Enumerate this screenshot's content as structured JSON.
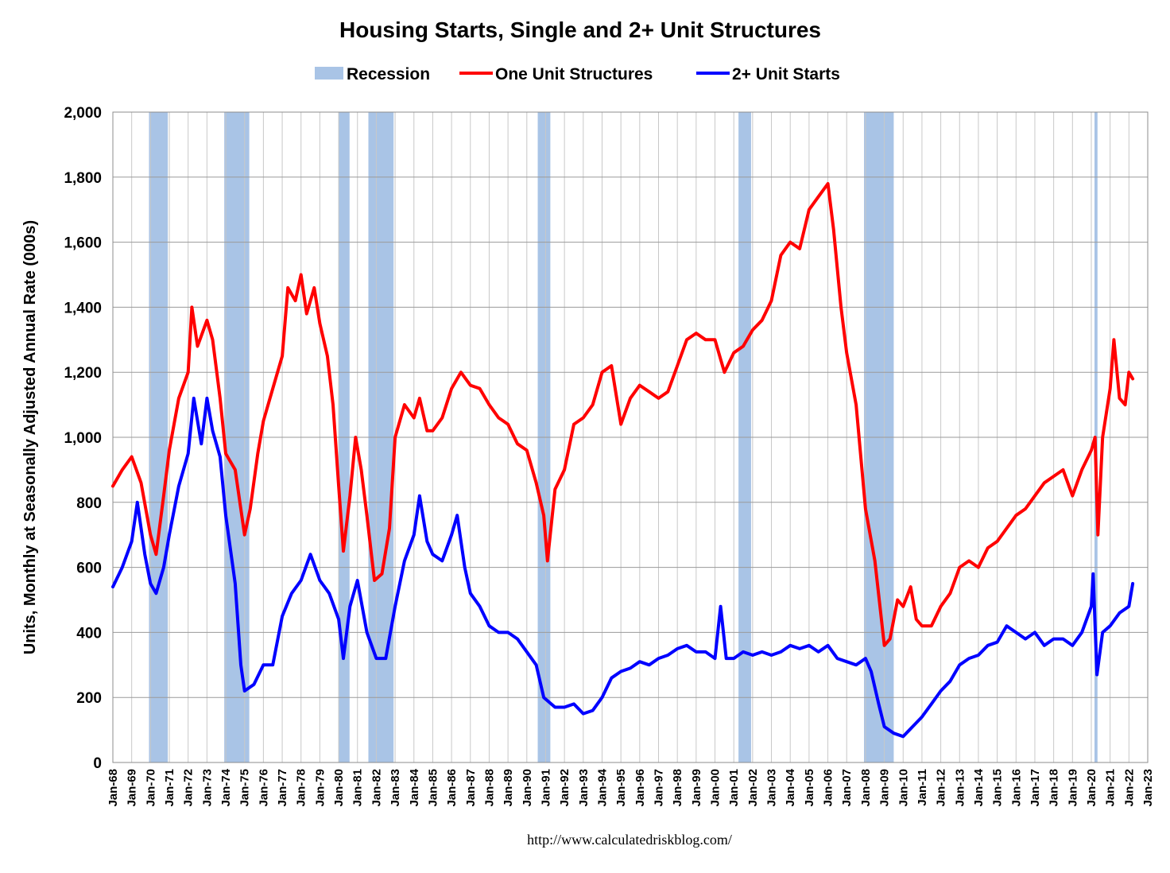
{
  "chart_data": {
    "type": "line",
    "title": "Housing Starts, Single and 2+ Unit Structures",
    "ylabel": "Units, Monthly at Seasonally Adjusted Annual Rate (000s)",
    "xlabel": "",
    "source": "http://www.calculatedriskblog.com/",
    "ylim": [
      0,
      2000
    ],
    "y_ticks": [
      0,
      200,
      400,
      600,
      800,
      1000,
      1200,
      1400,
      1600,
      1800,
      2000
    ],
    "y_tick_labels": [
      "0",
      "200",
      "400",
      "600",
      "800",
      "1,000",
      "1,200",
      "1,400",
      "1,600",
      "1,800",
      "2,000"
    ],
    "x_range": [
      1968,
      2023
    ],
    "x_tick_labels": [
      "Jan-68",
      "Jan-69",
      "Jan-70",
      "Jan-71",
      "Jan-72",
      "Jan-73",
      "Jan-74",
      "Jan-75",
      "Jan-76",
      "Jan-77",
      "Jan-78",
      "Jan-79",
      "Jan-80",
      "Jan-81",
      "Jan-82",
      "Jan-83",
      "Jan-84",
      "Jan-85",
      "Jan-86",
      "Jan-87",
      "Jan-88",
      "Jan-89",
      "Jan-90",
      "Jan-91",
      "Jan-92",
      "Jan-93",
      "Jan-94",
      "Jan-95",
      "Jan-96",
      "Jan-97",
      "Jan-98",
      "Jan-99",
      "Jan-00",
      "Jan-01",
      "Jan-02",
      "Jan-03",
      "Jan-04",
      "Jan-05",
      "Jan-06",
      "Jan-07",
      "Jan-08",
      "Jan-09",
      "Jan-10",
      "Jan-11",
      "Jan-12",
      "Jan-13",
      "Jan-14",
      "Jan-15",
      "Jan-16",
      "Jan-17",
      "Jan-18",
      "Jan-19",
      "Jan-20",
      "Jan-21",
      "Jan-22",
      "Jan-23"
    ],
    "grid": true,
    "legend_position": "top-center",
    "legend": [
      {
        "name": "Recession",
        "kind": "area",
        "color": "#a9c4e6"
      },
      {
        "name": "One Unit Structures",
        "kind": "line",
        "color": "#ff0000"
      },
      {
        "name": "2+ Unit Starts",
        "kind": "line",
        "color": "#0000ff"
      }
    ],
    "recessions": [
      [
        1969.92,
        1970.92
      ],
      [
        1973.92,
        1975.25
      ],
      [
        1980.0,
        1980.58
      ],
      [
        1981.58,
        1982.92
      ],
      [
        1990.58,
        1991.25
      ],
      [
        2001.25,
        2001.92
      ],
      [
        2007.92,
        2009.5
      ],
      [
        2020.17,
        2020.33
      ]
    ],
    "series": [
      {
        "name": "One Unit Structures",
        "color": "#ff0000",
        "points": [
          [
            1968.0,
            850
          ],
          [
            1968.5,
            900
          ],
          [
            1969.0,
            940
          ],
          [
            1969.5,
            860
          ],
          [
            1970.0,
            700
          ],
          [
            1970.3,
            640
          ],
          [
            1970.7,
            820
          ],
          [
            1971.0,
            960
          ],
          [
            1971.5,
            1120
          ],
          [
            1972.0,
            1200
          ],
          [
            1972.2,
            1400
          ],
          [
            1972.5,
            1280
          ],
          [
            1973.0,
            1360
          ],
          [
            1973.3,
            1300
          ],
          [
            1973.7,
            1120
          ],
          [
            1974.0,
            950
          ],
          [
            1974.5,
            900
          ],
          [
            1975.0,
            700
          ],
          [
            1975.3,
            780
          ],
          [
            1975.7,
            950
          ],
          [
            1976.0,
            1050
          ],
          [
            1976.5,
            1150
          ],
          [
            1977.0,
            1250
          ],
          [
            1977.3,
            1460
          ],
          [
            1977.7,
            1420
          ],
          [
            1978.0,
            1500
          ],
          [
            1978.3,
            1380
          ],
          [
            1978.7,
            1460
          ],
          [
            1979.0,
            1350
          ],
          [
            1979.4,
            1250
          ],
          [
            1979.7,
            1100
          ],
          [
            1980.0,
            850
          ],
          [
            1980.25,
            650
          ],
          [
            1980.6,
            820
          ],
          [
            1980.9,
            1000
          ],
          [
            1981.2,
            900
          ],
          [
            1981.5,
            760
          ],
          [
            1981.9,
            560
          ],
          [
            1982.3,
            580
          ],
          [
            1982.7,
            720
          ],
          [
            1983.0,
            1000
          ],
          [
            1983.5,
            1100
          ],
          [
            1984.0,
            1060
          ],
          [
            1984.3,
            1120
          ],
          [
            1984.7,
            1020
          ],
          [
            1985.0,
            1020
          ],
          [
            1985.5,
            1060
          ],
          [
            1986.0,
            1150
          ],
          [
            1986.5,
            1200
          ],
          [
            1987.0,
            1160
          ],
          [
            1987.5,
            1150
          ],
          [
            1988.0,
            1100
          ],
          [
            1988.5,
            1060
          ],
          [
            1989.0,
            1040
          ],
          [
            1989.5,
            980
          ],
          [
            1990.0,
            960
          ],
          [
            1990.5,
            860
          ],
          [
            1990.9,
            760
          ],
          [
            1991.1,
            620
          ],
          [
            1991.5,
            840
          ],
          [
            1992.0,
            900
          ],
          [
            1992.5,
            1040
          ],
          [
            1993.0,
            1060
          ],
          [
            1993.5,
            1100
          ],
          [
            1994.0,
            1200
          ],
          [
            1994.5,
            1220
          ],
          [
            1995.0,
            1040
          ],
          [
            1995.5,
            1120
          ],
          [
            1996.0,
            1160
          ],
          [
            1996.5,
            1140
          ],
          [
            1997.0,
            1120
          ],
          [
            1997.5,
            1140
          ],
          [
            1998.0,
            1220
          ],
          [
            1998.5,
            1300
          ],
          [
            1999.0,
            1320
          ],
          [
            1999.5,
            1300
          ],
          [
            2000.0,
            1300
          ],
          [
            2000.5,
            1200
          ],
          [
            2001.0,
            1260
          ],
          [
            2001.5,
            1280
          ],
          [
            2002.0,
            1330
          ],
          [
            2002.5,
            1360
          ],
          [
            2003.0,
            1420
          ],
          [
            2003.5,
            1560
          ],
          [
            2004.0,
            1600
          ],
          [
            2004.5,
            1580
          ],
          [
            2005.0,
            1700
          ],
          [
            2005.5,
            1740
          ],
          [
            2006.0,
            1780
          ],
          [
            2006.3,
            1640
          ],
          [
            2006.7,
            1400
          ],
          [
            2007.0,
            1260
          ],
          [
            2007.5,
            1100
          ],
          [
            2008.0,
            780
          ],
          [
            2008.5,
            620
          ],
          [
            2009.0,
            360
          ],
          [
            2009.3,
            380
          ],
          [
            2009.7,
            500
          ],
          [
            2010.0,
            480
          ],
          [
            2010.4,
            540
          ],
          [
            2010.7,
            440
          ],
          [
            2011.0,
            420
          ],
          [
            2011.5,
            420
          ],
          [
            2012.0,
            480
          ],
          [
            2012.5,
            520
          ],
          [
            2013.0,
            600
          ],
          [
            2013.5,
            620
          ],
          [
            2014.0,
            600
          ],
          [
            2014.5,
            660
          ],
          [
            2015.0,
            680
          ],
          [
            2015.5,
            720
          ],
          [
            2016.0,
            760
          ],
          [
            2016.5,
            780
          ],
          [
            2017.0,
            820
          ],
          [
            2017.5,
            860
          ],
          [
            2018.0,
            880
          ],
          [
            2018.5,
            900
          ],
          [
            2019.0,
            820
          ],
          [
            2019.5,
            900
          ],
          [
            2020.0,
            960
          ],
          [
            2020.2,
            1000
          ],
          [
            2020.35,
            700
          ],
          [
            2020.6,
            1000
          ],
          [
            2021.0,
            1150
          ],
          [
            2021.2,
            1300
          ],
          [
            2021.5,
            1120
          ],
          [
            2021.8,
            1100
          ],
          [
            2022.0,
            1200
          ],
          [
            2022.2,
            1180
          ]
        ]
      },
      {
        "name": "2+ Unit Starts",
        "color": "#0000ff",
        "points": [
          [
            1968.0,
            540
          ],
          [
            1968.5,
            600
          ],
          [
            1969.0,
            680
          ],
          [
            1969.3,
            800
          ],
          [
            1969.7,
            640
          ],
          [
            1970.0,
            550
          ],
          [
            1970.3,
            520
          ],
          [
            1970.7,
            600
          ],
          [
            1971.0,
            700
          ],
          [
            1971.5,
            850
          ],
          [
            1972.0,
            950
          ],
          [
            1972.3,
            1120
          ],
          [
            1972.7,
            980
          ],
          [
            1973.0,
            1120
          ],
          [
            1973.3,
            1020
          ],
          [
            1973.7,
            940
          ],
          [
            1974.0,
            760
          ],
          [
            1974.5,
            550
          ],
          [
            1974.8,
            300
          ],
          [
            1975.0,
            220
          ],
          [
            1975.5,
            240
          ],
          [
            1976.0,
            300
          ],
          [
            1976.5,
            300
          ],
          [
            1977.0,
            450
          ],
          [
            1977.5,
            520
          ],
          [
            1978.0,
            560
          ],
          [
            1978.5,
            640
          ],
          [
            1979.0,
            560
          ],
          [
            1979.5,
            520
          ],
          [
            1980.0,
            440
          ],
          [
            1980.25,
            320
          ],
          [
            1980.6,
            480
          ],
          [
            1981.0,
            560
          ],
          [
            1981.5,
            400
          ],
          [
            1982.0,
            320
          ],
          [
            1982.5,
            320
          ],
          [
            1983.0,
            480
          ],
          [
            1983.5,
            620
          ],
          [
            1984.0,
            700
          ],
          [
            1984.3,
            820
          ],
          [
            1984.7,
            680
          ],
          [
            1985.0,
            640
          ],
          [
            1985.5,
            620
          ],
          [
            1986.0,
            700
          ],
          [
            1986.3,
            760
          ],
          [
            1986.7,
            600
          ],
          [
            1987.0,
            520
          ],
          [
            1987.5,
            480
          ],
          [
            1988.0,
            420
          ],
          [
            1988.5,
            400
          ],
          [
            1989.0,
            400
          ],
          [
            1989.5,
            380
          ],
          [
            1990.0,
            340
          ],
          [
            1990.5,
            300
          ],
          [
            1990.9,
            200
          ],
          [
            1991.5,
            170
          ],
          [
            1992.0,
            170
          ],
          [
            1992.5,
            180
          ],
          [
            1993.0,
            150
          ],
          [
            1993.5,
            160
          ],
          [
            1994.0,
            200
          ],
          [
            1994.5,
            260
          ],
          [
            1995.0,
            280
          ],
          [
            1995.5,
            290
          ],
          [
            1996.0,
            310
          ],
          [
            1996.5,
            300
          ],
          [
            1997.0,
            320
          ],
          [
            1997.5,
            330
          ],
          [
            1998.0,
            350
          ],
          [
            1998.5,
            360
          ],
          [
            1999.0,
            340
          ],
          [
            1999.5,
            340
          ],
          [
            2000.0,
            320
          ],
          [
            2000.3,
            480
          ],
          [
            2000.6,
            320
          ],
          [
            2001.0,
            320
          ],
          [
            2001.5,
            340
          ],
          [
            2002.0,
            330
          ],
          [
            2002.5,
            340
          ],
          [
            2003.0,
            330
          ],
          [
            2003.5,
            340
          ],
          [
            2004.0,
            360
          ],
          [
            2004.5,
            350
          ],
          [
            2005.0,
            360
          ],
          [
            2005.5,
            340
          ],
          [
            2006.0,
            360
          ],
          [
            2006.5,
            320
          ],
          [
            2007.0,
            310
          ],
          [
            2007.5,
            300
          ],
          [
            2008.0,
            320
          ],
          [
            2008.3,
            280
          ],
          [
            2008.7,
            180
          ],
          [
            2009.0,
            110
          ],
          [
            2009.5,
            90
          ],
          [
            2010.0,
            80
          ],
          [
            2010.5,
            110
          ],
          [
            2011.0,
            140
          ],
          [
            2011.5,
            180
          ],
          [
            2012.0,
            220
          ],
          [
            2012.5,
            250
          ],
          [
            2013.0,
            300
          ],
          [
            2013.5,
            320
          ],
          [
            2014.0,
            330
          ],
          [
            2014.5,
            360
          ],
          [
            2015.0,
            370
          ],
          [
            2015.5,
            420
          ],
          [
            2016.0,
            400
          ],
          [
            2016.5,
            380
          ],
          [
            2017.0,
            400
          ],
          [
            2017.5,
            360
          ],
          [
            2018.0,
            380
          ],
          [
            2018.5,
            380
          ],
          [
            2019.0,
            360
          ],
          [
            2019.5,
            400
          ],
          [
            2020.0,
            480
          ],
          [
            2020.1,
            580
          ],
          [
            2020.3,
            270
          ],
          [
            2020.6,
            400
          ],
          [
            2021.0,
            420
          ],
          [
            2021.5,
            460
          ],
          [
            2022.0,
            480
          ],
          [
            2022.2,
            550
          ]
        ]
      }
    ]
  }
}
